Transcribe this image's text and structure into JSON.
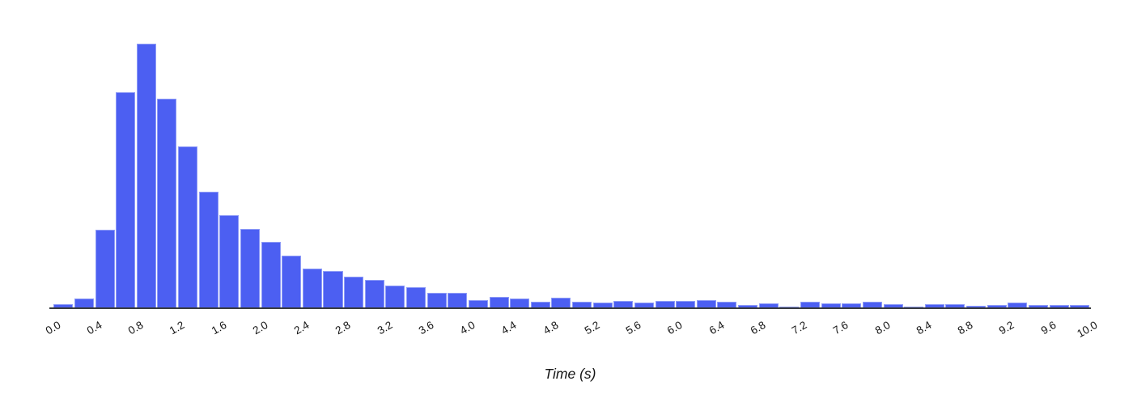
{
  "chart_data": {
    "type": "bar",
    "subtype": "histogram",
    "title": "",
    "xlabel": "Time (s)",
    "ylabel": "",
    "xlim": [
      0.0,
      10.0
    ],
    "bin_start": 0.0,
    "bin_width": 0.2,
    "n_bins": 50,
    "x_tick_labels": [
      "0.0",
      "0.4",
      "0.8",
      "1.2",
      "1.6",
      "2.0",
      "2.4",
      "2.8",
      "3.2",
      "3.6",
      "4.0",
      "4.4",
      "4.8",
      "5.2",
      "5.6",
      "6.0",
      "6.4",
      "6.8",
      "7.2",
      "7.6",
      "8.0",
      "8.4",
      "8.8",
      "9.2",
      "9.6",
      "10.0"
    ],
    "tick_label_rotation_deg": 30,
    "values_unit": "relative height, px (no y-axis shown)",
    "values": [
      4,
      11,
      96,
      266,
      326,
      258,
      199,
      143,
      114,
      97,
      81,
      64,
      48,
      45,
      38.5,
      34,
      27,
      25,
      18,
      18,
      9,
      13,
      11,
      7,
      12,
      7.5,
      6,
      8,
      6,
      8.5,
      8,
      9,
      7,
      3.5,
      5,
      1.5,
      7,
      5,
      5,
      7,
      4,
      1.5,
      4,
      4.5,
      2.5,
      3,
      6,
      3.5,
      3.5,
      3.5
    ],
    "y_axis_visible": false,
    "grid": false,
    "legend": "none",
    "colors": {
      "bar_fill": "#4c5ff2",
      "bar_edge": "#8f9cf7",
      "axis_line": "#383b40",
      "text": "#141414",
      "background": "#ffffff"
    }
  }
}
